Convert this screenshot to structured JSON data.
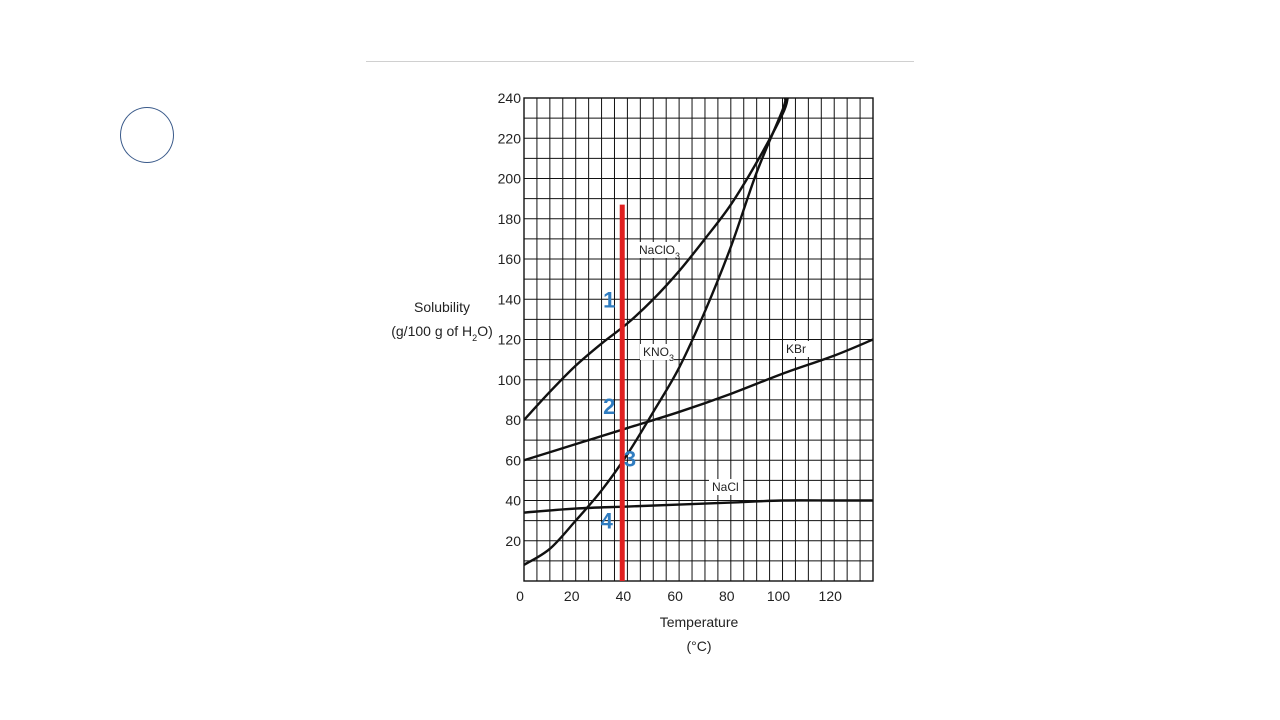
{
  "chart_data": {
    "type": "line",
    "title": "",
    "xlabel": "Temperature",
    "xunit": "(°C)",
    "ylabel": "Solubility",
    "yunit_parts": [
      "(g/100 g of H",
      "2",
      "O)"
    ],
    "xlim": [
      0,
      135
    ],
    "ylim": [
      0,
      240
    ],
    "x_ticks": [
      0,
      20,
      40,
      60,
      80,
      100,
      120
    ],
    "y_ticks": [
      20,
      40,
      60,
      80,
      100,
      120,
      140,
      160,
      180,
      200,
      220,
      240
    ],
    "grid": true,
    "series": [
      {
        "name": "NaClO3",
        "label_parts": [
          "NaClO",
          "3"
        ],
        "x": [
          0,
          10,
          20,
          30,
          40,
          50,
          60,
          70,
          80,
          90,
          100,
          102
        ],
        "y": [
          80,
          94,
          107,
          118,
          128,
          140,
          154,
          170,
          187,
          208,
          232,
          240
        ]
      },
      {
        "name": "KNO3",
        "label_parts": [
          "KNO",
          "3"
        ],
        "x": [
          0,
          10,
          20,
          30,
          40,
          50,
          60,
          70,
          80,
          90,
          100,
          101
        ],
        "y": [
          8,
          16,
          30,
          45,
          63,
          84,
          106,
          134,
          166,
          203,
          234,
          240
        ]
      },
      {
        "name": "KBr",
        "label_parts": [
          "KBr"
        ],
        "x": [
          0,
          20,
          40,
          60,
          80,
          100,
          120,
          135
        ],
        "y": [
          60,
          68,
          76,
          84,
          93,
          103,
          112,
          120
        ]
      },
      {
        "name": "NaCl",
        "label_parts": [
          "NaCl"
        ],
        "x": [
          0,
          20,
          40,
          60,
          80,
          100,
          120,
          135
        ],
        "y": [
          34,
          36,
          37,
          38,
          39,
          40,
          40,
          40
        ]
      }
    ],
    "reference_line": {
      "x": 38,
      "y_from": 0,
      "y_to": 187,
      "color": "#e02020"
    },
    "markers": [
      {
        "label": "1",
        "x": 33,
        "y": 136
      },
      {
        "label": "2",
        "x": 33,
        "y": 83
      },
      {
        "label": "3",
        "x": 41,
        "y": 57
      },
      {
        "label": "4",
        "x": 32,
        "y": 26
      }
    ],
    "marker_color": "#2f7cc0",
    "line_color": "#111111",
    "grid_color": "#111111"
  }
}
